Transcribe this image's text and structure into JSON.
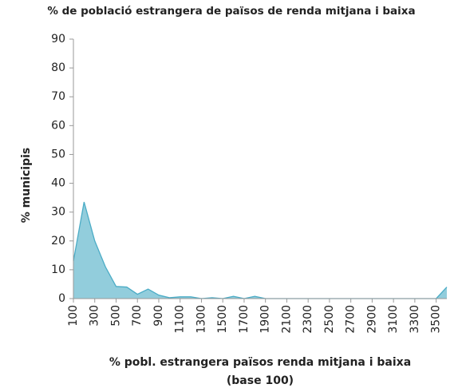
{
  "chart_data": {
    "type": "area",
    "title": "% de població estrangera de països de renda mitjana i baixa",
    "ylabel": "% municipis",
    "xlabel": [
      "% pobl. estrangera països renda mitjana i baixa",
      "(base 100)"
    ],
    "x": [
      100,
      200,
      300,
      400,
      500,
      600,
      700,
      800,
      900,
      1000,
      1100,
      1200,
      1300,
      1400,
      1500,
      1600,
      1700,
      1800,
      1900,
      2000,
      2100,
      2200,
      2300,
      2400,
      2500,
      2600,
      2700,
      2800,
      2900,
      3000,
      3100,
      3200,
      3300,
      3400,
      3500,
      3600
    ],
    "series": [
      {
        "name": "% municipis",
        "color": "#4bacc6",
        "fill": "#92cddc",
        "values": [
          13,
          33.5,
          20,
          11,
          4.2,
          4,
          1.5,
          3.3,
          1.2,
          0.3,
          0.6,
          0.6,
          0,
          0.3,
          0,
          0.8,
          0,
          0.8,
          0,
          0,
          0,
          0,
          0,
          0,
          0,
          0,
          0,
          0,
          0,
          0,
          0,
          0,
          0,
          0,
          0,
          4
        ]
      }
    ],
    "xlim": [
      100,
      3600
    ],
    "xticks": [
      100,
      300,
      500,
      700,
      900,
      1100,
      1300,
      1500,
      1700,
      1900,
      2100,
      2300,
      2500,
      2700,
      2900,
      3100,
      3300,
      3500
    ],
    "ylim": [
      0,
      90
    ],
    "yticks": [
      0,
      10,
      20,
      30,
      40,
      50,
      60,
      70,
      80,
      90
    ],
    "grid": false
  }
}
